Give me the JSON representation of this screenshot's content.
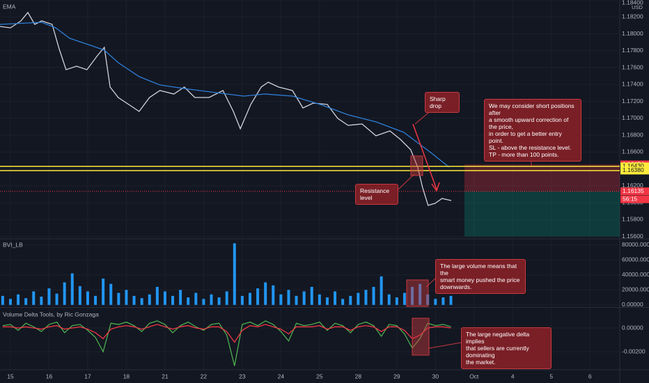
{
  "chart_data": [
    {
      "type": "line",
      "title": "EMA",
      "axis_unit": "USD",
      "ylim": [
        1.1558,
        1.184
      ],
      "yticks": [
        {
          "value": 1.156,
          "label": "1.15600"
        },
        {
          "value": 1.158,
          "label": "1.15800"
        },
        {
          "value": 1.16,
          "label": "1.16000"
        },
        {
          "value": 1.162,
          "label": "1.16200"
        },
        {
          "value": 1.164,
          "label": "1.16400"
        },
        {
          "value": 1.166,
          "label": "1.16600"
        },
        {
          "value": 1.168,
          "label": "1.16800"
        },
        {
          "value": 1.17,
          "label": "1.17000"
        },
        {
          "value": 1.172,
          "label": "1.17200"
        },
        {
          "value": 1.174,
          "label": "1.17400"
        },
        {
          "value": 1.176,
          "label": "1.17600"
        },
        {
          "value": 1.178,
          "label": "1.17800"
        },
        {
          "value": 1.18,
          "label": "1.18000"
        },
        {
          "value": 1.182,
          "label": "1.18200"
        },
        {
          "value": 1.184,
          "label": "1.18400"
        }
      ],
      "grid": true,
      "series": [
        {
          "color": "#d1d4dc",
          "x": [
            -0.27,
            0,
            0.27,
            0.45,
            0.63,
            0.81,
            1.08,
            1.26,
            1.44,
            1.71,
            1.98,
            2.25,
            2.43,
            2.58,
            2.79,
            3.06,
            3.33,
            3.6,
            3.87,
            4.23,
            4.5,
            4.77,
            5.14,
            5.5,
            5.77,
            5.95,
            6.22,
            6.49,
            6.67,
            6.94,
            7.3,
            7.57,
            7.84,
            8.2,
            8.47,
            8.74,
            9.1,
            9.46,
            9.82,
            10.09,
            10.36,
            10.54,
            10.67,
            10.81,
            10.99,
            11.17,
            11.41
          ],
          "values": [
            1.18087,
            1.1807,
            1.18153,
            1.18252,
            1.18111,
            1.18153,
            1.18111,
            1.17823,
            1.17575,
            1.17617,
            1.17575,
            1.1774,
            1.17839,
            1.17369,
            1.17246,
            1.17163,
            1.17081,
            1.17246,
            1.17328,
            1.17287,
            1.17369,
            1.17246,
            1.17246,
            1.17328,
            1.17081,
            1.16875,
            1.17163,
            1.17369,
            1.17427,
            1.17369,
            1.17328,
            1.17122,
            1.1718,
            1.17163,
            1.16998,
            1.16916,
            1.16932,
            1.16792,
            1.1685,
            1.16751,
            1.16627,
            1.16421,
            1.16174,
            1.15968,
            1.15992,
            1.1605,
            1.16025
          ]
        },
        {
          "color": "#2e7fd8",
          "x": [
            -0.27,
            0.81,
            1.17,
            1.53,
            2.07,
            2.43,
            2.79,
            3.33,
            3.87,
            4.59,
            5.32,
            6.04,
            6.58,
            7.3,
            8.02,
            8.74,
            9.46,
            10.18,
            10.54,
            10.9,
            11.35
          ],
          "values": [
            1.18111,
            1.18136,
            1.1807,
            1.17947,
            1.17864,
            1.17806,
            1.17658,
            1.17493,
            1.17394,
            1.17345,
            1.17303,
            1.17262,
            1.17287,
            1.17262,
            1.17163,
            1.1704,
            1.16957,
            1.16833,
            1.1671,
            1.16586,
            1.16421
          ]
        }
      ],
      "levels": [
        {
          "value": 1.16454,
          "label": "1.16454",
          "color": "#f23645",
          "line": "none"
        },
        {
          "value": 1.1643,
          "label": "1.16430",
          "color": "#ffeb3b",
          "line": "solid"
        },
        {
          "value": 1.1638,
          "label": "1.16380",
          "color": "#ffeb3b",
          "line": "solid"
        },
        {
          "value": 1.16135,
          "label": "1.16135",
          "color": "#f23645",
          "line": "dotted"
        }
      ],
      "countdown": "56:15",
      "position": {
        "stop": 1.16454,
        "entry": 1.16135,
        "target": 1.156,
        "x": [
          11.75,
          15.77
        ]
      },
      "annotations": [
        "Sharp drop",
        "Resistance level",
        "We may consider short positions after\na smooth upward correction of the price,\nin order to get a better entry point.\nSL - above the resistance level.\nTP - more than 100 points.",
        "The large volume means that the\nsmart money pushed the price\ndownwards.",
        "The large negative delta implies\nthat sellers are currently dominating\nthe market."
      ]
    },
    {
      "type": "bar",
      "title": "BVI_LB",
      "color": "#2196f3",
      "ylim": [
        -2000,
        87000
      ],
      "yticks": [
        {
          "value": 0,
          "label": "0.00000"
        },
        {
          "value": 20000,
          "label": "20000.00000"
        },
        {
          "value": 40000,
          "label": "40000.00000"
        },
        {
          "value": 60000,
          "label": "60000.00000"
        },
        {
          "value": 80000,
          "label": "80000.00000"
        }
      ],
      "grid": true,
      "x": [
        -0.2,
        0,
        0.2,
        0.4,
        0.6,
        0.8,
        1,
        1.2,
        1.4,
        1.6,
        1.8,
        2,
        2.2,
        2.4,
        2.6,
        2.8,
        3,
        3.2,
        3.4,
        3.6,
        3.8,
        4,
        4.2,
        4.4,
        4.6,
        4.8,
        5,
        5.2,
        5.4,
        5.6,
        5.8,
        6,
        6.2,
        6.4,
        6.6,
        6.8,
        7,
        7.2,
        7.4,
        7.6,
        7.8,
        8,
        8.2,
        8.4,
        8.6,
        8.8,
        9,
        9.2,
        9.4,
        9.6,
        9.8,
        10,
        10.2,
        10.4,
        10.6,
        10.8,
        11,
        11.2,
        11.4
      ],
      "values": [
        12000,
        8000,
        14000,
        9000,
        18000,
        11000,
        22000,
        15000,
        30000,
        42000,
        25000,
        18000,
        12000,
        35000,
        28000,
        16000,
        20000,
        12000,
        9000,
        14000,
        24000,
        18000,
        12000,
        20000,
        10000,
        16000,
        8000,
        14000,
        10000,
        18000,
        82000,
        12000,
        16000,
        22000,
        30000,
        26000,
        14000,
        20000,
        12000,
        18000,
        24000,
        14000,
        10000,
        18000,
        8000,
        12000,
        16000,
        20000,
        24000,
        38000,
        14000,
        10000,
        16000,
        24000,
        28000,
        14000,
        8000,
        10000,
        12000
      ]
    },
    {
      "type": "line",
      "title": "Volume Delta Tools, by Ric Gonzaga",
      "ylim": [
        -0.00347,
        0.00165
      ],
      "yticks": [
        {
          "value": 0,
          "label": "0.00000"
        },
        {
          "value": -0.002,
          "label": "-0.00200"
        }
      ],
      "grid": true,
      "xlim": [
        -0.27,
        15.77
      ],
      "xticks": [
        {
          "value": 0,
          "label": "15"
        },
        {
          "value": 1,
          "label": "16"
        },
        {
          "value": 2,
          "label": "17"
        },
        {
          "value": 3,
          "label": "18"
        },
        {
          "value": 4,
          "label": "21"
        },
        {
          "value": 5,
          "label": "22"
        },
        {
          "value": 6,
          "label": "23"
        },
        {
          "value": 7,
          "label": "24"
        },
        {
          "value": 8,
          "label": "25"
        },
        {
          "value": 9,
          "label": "28"
        },
        {
          "value": 10,
          "label": "29"
        },
        {
          "value": 11,
          "label": "30"
        },
        {
          "value": 12,
          "label": "Oct"
        },
        {
          "value": 13,
          "label": "4"
        },
        {
          "value": 14,
          "label": "5"
        },
        {
          "value": 15,
          "label": "6"
        }
      ],
      "x": [
        -0.2,
        0,
        0.2,
        0.4,
        0.6,
        0.8,
        1,
        1.2,
        1.4,
        1.6,
        1.8,
        2,
        2.2,
        2.4,
        2.6,
        2.8,
        3,
        3.2,
        3.4,
        3.6,
        3.8,
        4,
        4.2,
        4.4,
        4.6,
        4.8,
        5,
        5.2,
        5.4,
        5.6,
        5.8,
        6,
        6.2,
        6.4,
        6.6,
        6.8,
        7,
        7.2,
        7.4,
        7.6,
        7.8,
        8,
        8.2,
        8.4,
        8.6,
        8.8,
        9,
        9.2,
        9.4,
        9.6,
        9.8,
        10,
        10.2,
        10.4,
        10.6,
        10.8,
        11,
        11.2,
        11.4
      ],
      "series": [
        {
          "color": "#4caf50",
          "values": [
            0.0002,
            0.0003,
            -0.0002,
            0.0004,
            0.0001,
            -0.0003,
            0.0003,
            0.0005,
            -0.0004,
            0.0002,
            0.0003,
            -0.0002,
            -0.0008,
            -0.002,
            0.0004,
            0.0003,
            0.0005,
            0.0002,
            -0.0003,
            0.0004,
            0.0006,
            0.0003,
            -0.0004,
            0.0002,
            0.0005,
            0.0001,
            -0.0002,
            0.0003,
            0.0004,
            -0.0006,
            -0.0032,
            0.0003,
            0.0005,
            0.0002,
            0.0006,
            0.0003,
            -0.0003,
            -0.0011,
            0.0004,
            0.0002,
            0.0003,
            0.0005,
            -0.0002,
            0.0004,
            0.0002,
            -0.0004,
            0.0003,
            0.0005,
            0.0002,
            -0.0007,
            0.0003,
            0.0002,
            -0.0005,
            -0.0017,
            -0.0009,
            0.0004,
            0.0002,
            0.0003,
            0.0001
          ]
        },
        {
          "color": "#f23645",
          "values": [
            0.0001,
            0.0001,
            0,
            0.0001,
            0,
            -0.0001,
            0.0001,
            0.0002,
            -0.0001,
            0,
            0.0001,
            -0.0001,
            -0.0004,
            -0.0009,
            -0.0001,
            0.0001,
            0.0002,
            0.0001,
            -0.0001,
            0.0001,
            0.0003,
            0.0001,
            -0.0001,
            0.0001,
            0.0002,
            0,
            -0.0001,
            0.0001,
            0.0001,
            -0.0003,
            -0.0012,
            -0.0002,
            0.0002,
            0.0001,
            0.0003,
            0.0001,
            -0.0001,
            -0.0005,
            0.0001,
            0.0001,
            0.0001,
            0.0002,
            -0.0001,
            0.0001,
            0.0001,
            -0.0002,
            0.0001,
            0.0002,
            0.0001,
            -0.0003,
            0.0001,
            0.0001,
            -0.0002,
            -0.0009,
            -0.0006,
            0,
            0.0001,
            0.0001,
            0
          ]
        }
      ]
    }
  ]
}
